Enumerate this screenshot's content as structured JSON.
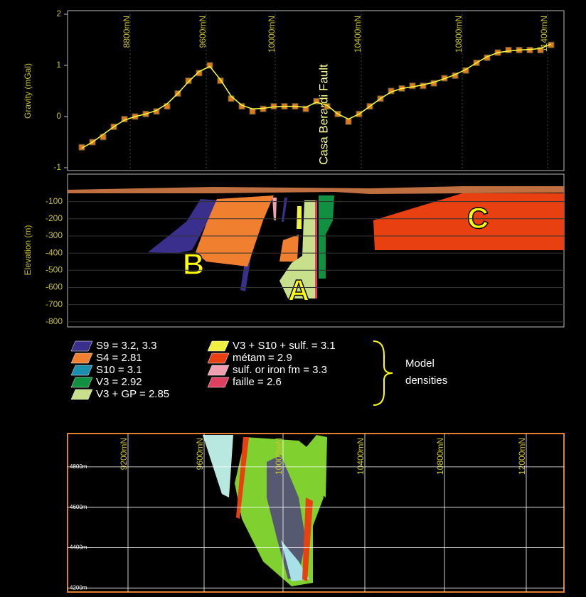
{
  "chart_data": [
    {
      "type": "line",
      "ylabel": "Gravity (mGal)",
      "ylim": [
        -1,
        2
      ],
      "yticks": [
        -1,
        0,
        1,
        2
      ],
      "xtick_labels": [
        "8800mN",
        "9600mN",
        "10000mN",
        "10400mN",
        "10800mN",
        "11400mN"
      ],
      "annotation": "Casa Berardi Fault",
      "series": [
        {
          "color": "#e07820",
          "marker": "square",
          "values": [
            -0.6,
            -0.5,
            -0.4,
            -0.2,
            -0.05,
            0,
            0.05,
            0.1,
            0.2,
            0.45,
            0.7,
            0.85,
            1.0,
            0.7,
            0.35,
            0.2,
            0.1,
            0.15,
            0.2,
            0.2,
            0.2,
            0.15,
            0.3,
            0.2,
            0.05,
            -0.1,
            0.05,
            0.2,
            0.35,
            0.5,
            0.55,
            0.6,
            0.6,
            0.65,
            0.75,
            0.8,
            0.9,
            1.05,
            1.15,
            1.25,
            1.3,
            1.3,
            1.3,
            1.3,
            1.4
          ]
        },
        {
          "color": "#ffff40",
          "values": [
            -0.62,
            -0.5,
            -0.35,
            -0.2,
            -0.07,
            0,
            0.05,
            0.12,
            0.25,
            0.45,
            0.68,
            0.88,
            0.98,
            0.72,
            0.4,
            0.22,
            0.15,
            0.16,
            0.19,
            0.2,
            0.2,
            0.18,
            0.28,
            0.22,
            0.05,
            -0.05,
            0.05,
            0.2,
            0.35,
            0.48,
            0.55,
            0.58,
            0.62,
            0.67,
            0.74,
            0.82,
            0.92,
            1.05,
            1.17,
            1.25,
            1.28,
            1.3,
            1.31,
            1.33,
            1.42
          ]
        }
      ]
    },
    {
      "type": "section",
      "ylabel": "Elevation (m)",
      "ylim": [
        -830,
        60
      ],
      "yticks": [
        -100,
        -200,
        -300,
        -400,
        -500,
        -600,
        -700,
        -800
      ],
      "body_labels": [
        "A",
        "B",
        "C"
      ]
    },
    {
      "type": "section",
      "xtick_labels": [
        "9200mN",
        "9600mN",
        "10000mN",
        "10400mN",
        "10800mN",
        "12000mN"
      ],
      "ylim": [
        4180,
        4965
      ],
      "yticks": [
        {
          "value": 4800,
          "label": "4800m"
        },
        {
          "value": 4600,
          "label": "4600m"
        },
        {
          "value": 4400,
          "label": "4400m"
        },
        {
          "value": 4200,
          "label": "4200m"
        }
      ]
    }
  ],
  "legend": {
    "items": [
      {
        "label": "S9 =  3.2, 3.3",
        "color": "#3a2f8c"
      },
      {
        "label": "S4 = 2.81",
        "color": "#f08030"
      },
      {
        "label": "S10 = 3.1",
        "color": "#1a8fb0"
      },
      {
        "label": "V3 =  2.92",
        "color": "#109040"
      },
      {
        "label": "V3 +  GP = 2.85",
        "color": "#c8e08c"
      },
      {
        "label": "V3 +  S10 + sulf. = 3.1",
        "color": "#f0f040"
      },
      {
        "label": "métam = 2.9",
        "color": "#e84010"
      },
      {
        "label": "sulf. or iron fm = 3.3",
        "color": "#f0a0b0"
      },
      {
        "label": "faille = 2.6",
        "color": "#e04060"
      }
    ],
    "caption": [
      "Model",
      "densities"
    ]
  }
}
